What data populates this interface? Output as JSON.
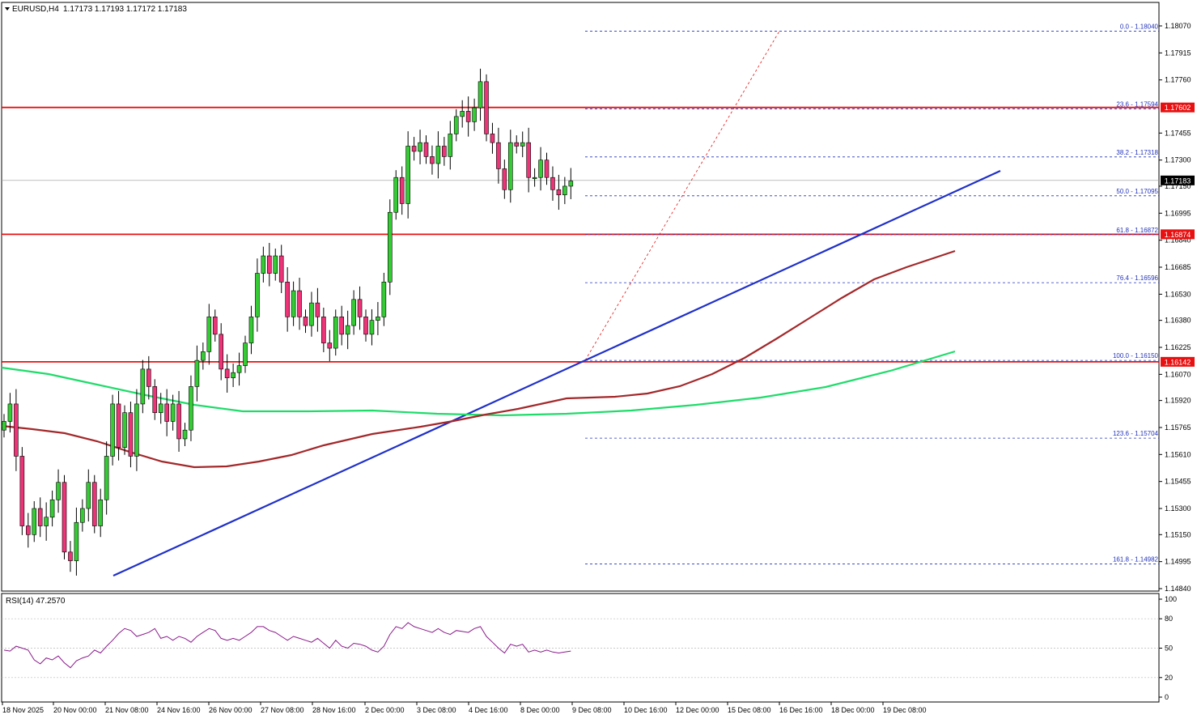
{
  "header": {
    "symbol": "EURUSD,H4",
    "ohlc": "1.17173 1.17193 1.17172 1.17183"
  },
  "rsi_panel": {
    "label": "RSI(14) 47.2570"
  },
  "colors": {
    "bull": "#33cc33",
    "bear": "#ee3377",
    "ma_slow": "#1fdc6a",
    "ma_fast": "#a3282a",
    "trendline": "#1f30c8",
    "support": "#e81010",
    "fib": "#2233bb",
    "rsi_line": "#8a1a8a"
  },
  "chart_data": [
    {
      "type": "candlestick",
      "title": "EURUSD,H4",
      "y_axis_ticks": [
        "1.18070",
        "1.17915",
        "1.17760",
        "1.17455",
        "1.17300",
        "1.17150",
        "1.16995",
        "1.16840",
        "1.16685",
        "1.16530",
        "1.16380",
        "1.16225",
        "1.16070",
        "1.15920",
        "1.15765",
        "1.15610",
        "1.15455",
        "1.15300",
        "1.15150",
        "1.14995",
        "1.14840"
      ],
      "ylim": [
        1.148,
        1.183
      ],
      "x_axis_labels": [
        "18 Nov 2025",
        "20 Nov 00:00",
        "21 Nov 08:00",
        "24 Nov 16:00",
        "26 Nov 00:00",
        "27 Nov 08:00",
        "28 Nov 16:00",
        "2 Dec 00:00",
        "3 Dec 08:00",
        "4 Dec 16:00",
        "8 Dec 00:00",
        "9 Dec 08:00",
        "10 Dec 16:00",
        "12 Dec 00:00",
        "15 Dec 08:00",
        "16 Dec 16:00",
        "18 Dec 00:00",
        "19 Dec 08:00"
      ],
      "candles_close": [
        1.158,
        1.159,
        1.156,
        1.152,
        1.1515,
        1.153,
        1.152,
        1.1525,
        1.1535,
        1.1545,
        1.1505,
        1.15,
        1.1522,
        1.153,
        1.1545,
        1.152,
        1.1535,
        1.156,
        1.159,
        1.1565,
        1.1585,
        1.156,
        1.159,
        1.161,
        1.16,
        1.1585,
        1.159,
        1.158,
        1.159,
        1.157,
        1.1575,
        1.16,
        1.1615,
        1.162,
        1.164,
        1.163,
        1.161,
        1.1605,
        1.1608,
        1.1612,
        1.1625,
        1.164,
        1.1665,
        1.1675,
        1.1665,
        1.1675,
        1.166,
        1.164,
        1.1655,
        1.164,
        1.1635,
        1.1648,
        1.164,
        1.1625,
        1.1622,
        1.164,
        1.163,
        1.1635,
        1.165,
        1.164,
        1.163,
        1.1638,
        1.164,
        1.166,
        1.17,
        1.172,
        1.1705,
        1.1738,
        1.1735,
        1.174,
        1.1732,
        1.1728,
        1.1738,
        1.1732,
        1.1745,
        1.1755,
        1.1758,
        1.1752,
        1.176,
        1.1775,
        1.1745,
        1.174,
        1.1725,
        1.1713,
        1.174,
        1.1738,
        1.174,
        1.172,
        1.172,
        1.173,
        1.172,
        1.1713,
        1.171,
        1.1715,
        1.1718
      ],
      "horizontal_levels": [
        {
          "label": "1.17602",
          "value": 1.17602,
          "color": "#e81010"
        },
        {
          "label": "1.16874",
          "value": 1.16874,
          "color": "#e81010"
        },
        {
          "label": "1.16142",
          "value": 1.16142,
          "color": "#e81010"
        },
        {
          "label": "1.17183",
          "value": 1.17183,
          "color": "#999999"
        }
      ],
      "fibonacci": [
        {
          "label": "0.0 - 1.18040",
          "value": 1.1804
        },
        {
          "label": "23.6 - 1.17594",
          "value": 1.17594
        },
        {
          "label": "38.2 - 1.17318",
          "value": 1.17318
        },
        {
          "label": "50.0 - 1.17095",
          "value": 1.17095
        },
        {
          "label": "61.8 - 1.16872",
          "value": 1.16872
        },
        {
          "label": "76.4 - 1.16596",
          "value": 1.16596
        },
        {
          "label": "100.0 - 1.16150",
          "value": 1.1615
        },
        {
          "label": "123.6 - 1.15704",
          "value": 1.15704
        },
        {
          "label": "161.8 - 1.14982",
          "value": 1.14982
        }
      ],
      "price_tags": [
        "1.17602",
        "1.17183",
        "1.16874",
        "1.16142"
      ]
    },
    {
      "type": "line",
      "title": "RSI(14) 47.2570",
      "y_axis_ticks": [
        "100",
        "80",
        "50",
        "20",
        "0"
      ],
      "ylim": [
        0,
        100
      ],
      "levels": [
        80,
        50,
        20
      ],
      "values": [
        48,
        47,
        52,
        50,
        48,
        38,
        34,
        40,
        38,
        42,
        35,
        30,
        37,
        40,
        42,
        48,
        45,
        52,
        58,
        65,
        70,
        68,
        62,
        64,
        66,
        70,
        60,
        62,
        58,
        62,
        60,
        56,
        62,
        66,
        70,
        68,
        60,
        58,
        60,
        58,
        62,
        66,
        72,
        72,
        68,
        66,
        62,
        58,
        62,
        60,
        58,
        56,
        60,
        55,
        50,
        58,
        52,
        50,
        55,
        54,
        52,
        48,
        46,
        52,
        64,
        72,
        70,
        76,
        72,
        70,
        68,
        66,
        70,
        66,
        64,
        68,
        67,
        66,
        70,
        72,
        62,
        56,
        50,
        45,
        54,
        52,
        54,
        46,
        48,
        46,
        48,
        46,
        45,
        46,
        47
      ]
    }
  ]
}
